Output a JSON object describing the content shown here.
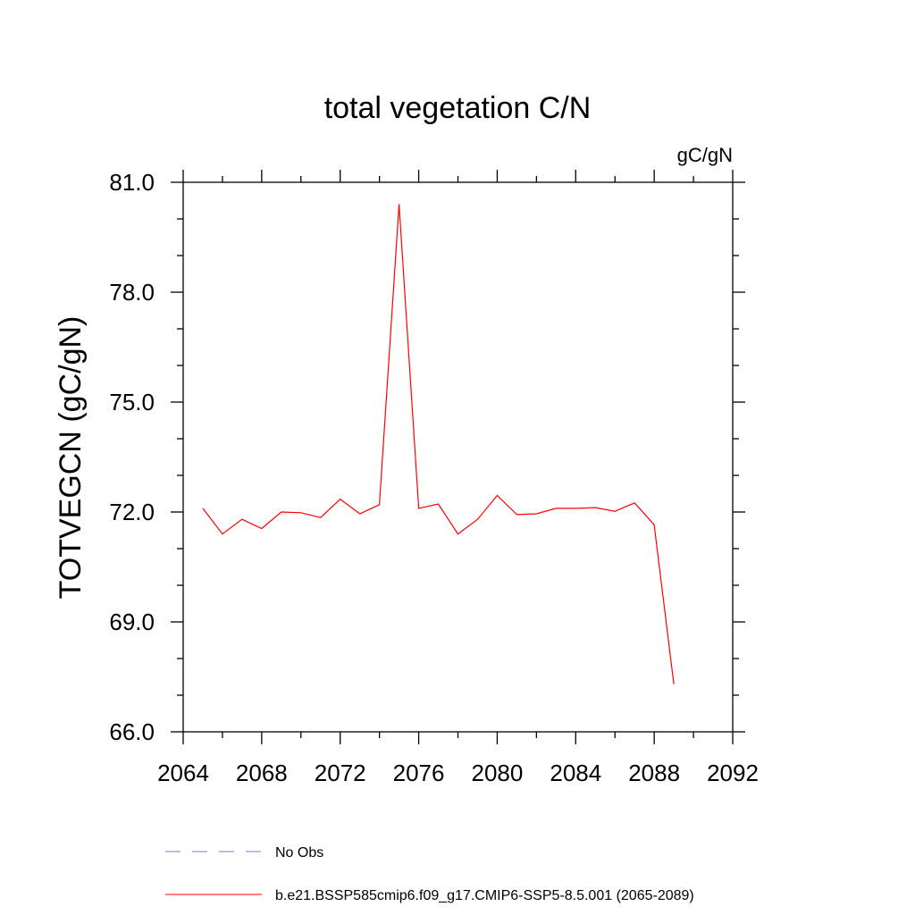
{
  "chart_data": {
    "type": "line",
    "title": "total vegetation C/N",
    "units_label": "gC/gN",
    "ylabel": "TOTVEGCN  (gC/gN)",
    "xlabel": "",
    "xlim": [
      2064,
      2092
    ],
    "ylim": [
      66.0,
      81.0
    ],
    "x_ticks": [
      2064,
      2068,
      2072,
      2076,
      2080,
      2084,
      2088,
      2092
    ],
    "x_tick_labels": [
      "2064",
      "2068",
      "2072",
      "2076",
      "2080",
      "2084",
      "2088",
      "2092"
    ],
    "x_minor_step": 2,
    "y_ticks": [
      66.0,
      69.0,
      72.0,
      75.0,
      78.0,
      81.0
    ],
    "y_tick_labels": [
      "66.0",
      "69.0",
      "72.0",
      "75.0",
      "78.0",
      "81.0"
    ],
    "y_minor_step": 1.0,
    "grid": false,
    "series": [
      {
        "name": "b.e21.BSSP585cmip6.f09_g17.CMIP6-SSP5-8.5.001 (2065-2089)",
        "color": "#ff0000",
        "style": "solid",
        "x": [
          2065,
          2066,
          2067,
          2068,
          2069,
          2070,
          2071,
          2072,
          2073,
          2074,
          2075,
          2076,
          2077,
          2078,
          2079,
          2080,
          2081,
          2082,
          2083,
          2084,
          2085,
          2086,
          2087,
          2088,
          2089
        ],
        "values": [
          72.1,
          71.4,
          71.8,
          71.55,
          72.0,
          71.98,
          71.85,
          72.35,
          71.95,
          72.2,
          80.4,
          72.1,
          72.22,
          71.4,
          71.8,
          72.45,
          71.93,
          71.95,
          72.1,
          72.1,
          72.12,
          72.02,
          72.25,
          71.65,
          67.3
        ]
      }
    ],
    "legend": {
      "position": "bottom",
      "entries": [
        {
          "label": "No Obs",
          "color": "#7b7bc9",
          "style": "dashed"
        },
        {
          "label": "b.e21.BSSP585cmip6.f09_g17.CMIP6-SSP5-8.5.001 (2065-2089)",
          "color": "#ff0000",
          "style": "solid"
        }
      ]
    }
  }
}
